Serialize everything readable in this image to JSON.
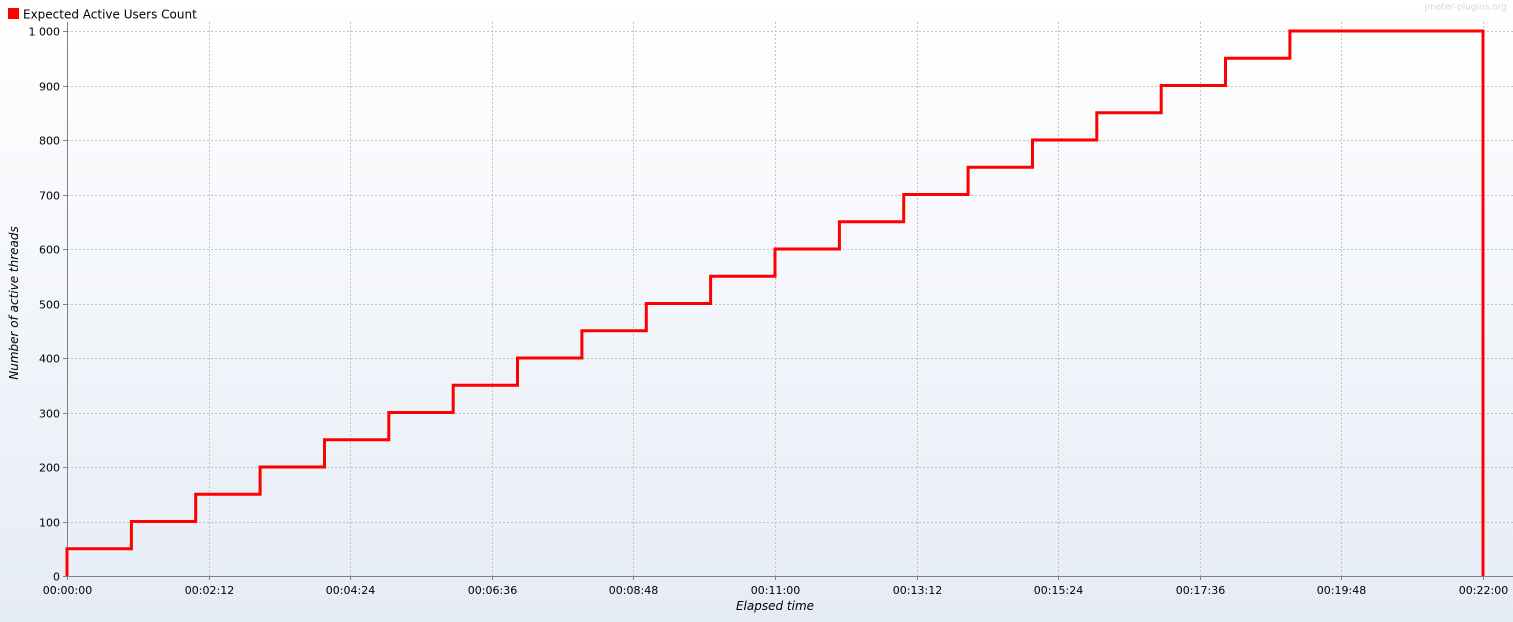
{
  "watermark": "jmeter-plugins.org",
  "legend": {
    "items": [
      {
        "label": "Expected Active Users Count",
        "color": "#ff0000"
      }
    ]
  },
  "chart_data": {
    "type": "line",
    "step": true,
    "title": "",
    "xlabel": "Elapsed time",
    "ylabel": "Number of active threads",
    "x_unit": "seconds",
    "xlim": [
      0,
      1320
    ],
    "ylim": [
      0,
      1000
    ],
    "x_ticks": [
      0,
      132,
      264,
      396,
      528,
      660,
      792,
      924,
      1056,
      1188,
      1320
    ],
    "x_tick_labels": [
      "00:00:00",
      "00:02:12",
      "00:04:24",
      "00:06:36",
      "00:08:48",
      "00:11:00",
      "00:13:12",
      "00:15:24",
      "00:17:36",
      "00:19:48",
      "00:22:00"
    ],
    "y_ticks": [
      0,
      100,
      200,
      300,
      400,
      500,
      600,
      700,
      800,
      900,
      1000
    ],
    "y_tick_labels": [
      "0",
      "100",
      "200",
      "300",
      "400",
      "500",
      "600",
      "700",
      "800",
      "900",
      "1 000"
    ],
    "grid": true,
    "legend_position": "top-left",
    "series": [
      {
        "name": "Expected Active Users Count",
        "color": "#ff0000",
        "x": [
          0,
          0,
          60,
          60,
          120,
          120,
          180,
          180,
          240,
          240,
          300,
          300,
          360,
          360,
          420,
          420,
          480,
          480,
          540,
          540,
          600,
          600,
          660,
          660,
          720,
          720,
          780,
          780,
          840,
          840,
          900,
          900,
          960,
          960,
          1020,
          1020,
          1080,
          1080,
          1140,
          1140,
          1320,
          1320
        ],
        "y": [
          0,
          50,
          50,
          100,
          100,
          150,
          150,
          200,
          200,
          250,
          250,
          300,
          300,
          350,
          350,
          400,
          400,
          450,
          450,
          500,
          500,
          550,
          550,
          600,
          600,
          650,
          650,
          700,
          700,
          750,
          750,
          800,
          800,
          850,
          850,
          900,
          900,
          950,
          950,
          1000,
          1000,
          0
        ]
      }
    ]
  }
}
